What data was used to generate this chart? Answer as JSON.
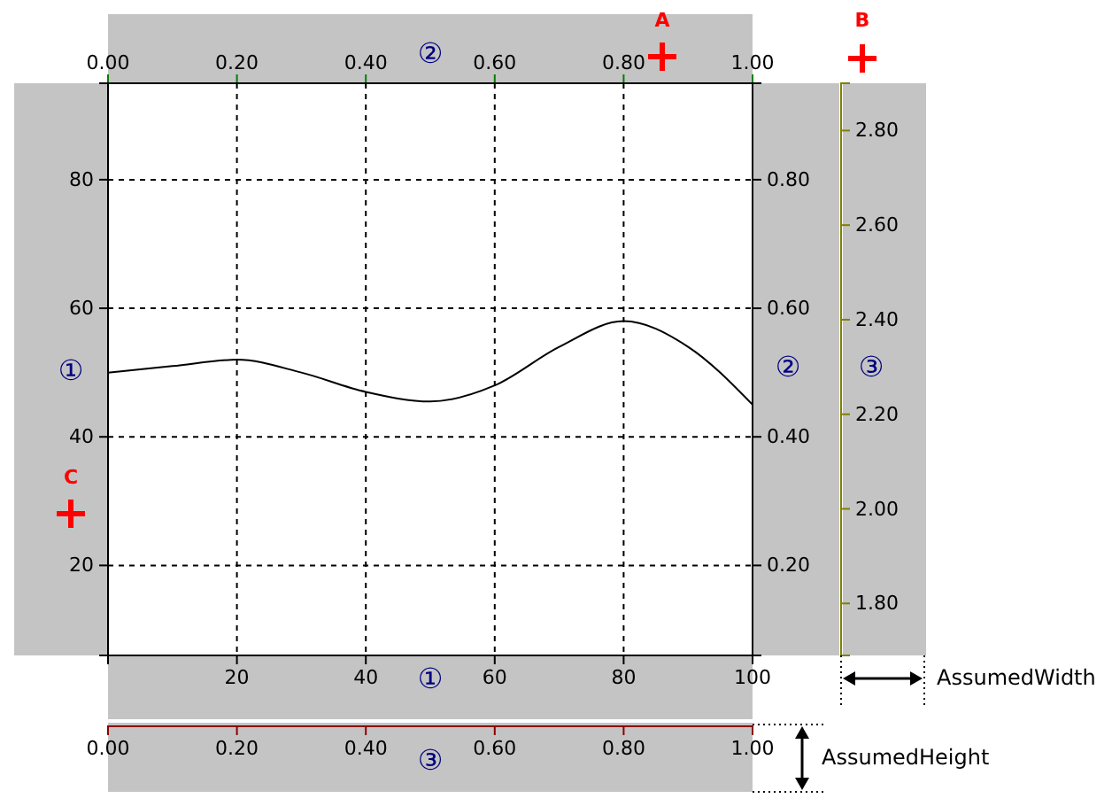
{
  "chart_data": {
    "type": "line",
    "x": [
      0,
      10,
      20,
      30,
      40,
      50,
      60,
      70,
      80,
      90,
      100
    ],
    "series": [
      {
        "color": "#000000",
        "values": [
          50,
          51,
          52,
          50,
          47,
          45.5,
          48,
          54,
          58,
          54,
          45
        ]
      }
    ],
    "xlim": [
      0,
      100
    ],
    "xticks": [
      20,
      40,
      60,
      80,
      100
    ],
    "xlabel": "①",
    "x2lim": [
      0,
      1
    ],
    "x2ticks": [
      {
        "value": 0,
        "label": "0.00"
      },
      {
        "value": 0.2,
        "label": "0.20"
      },
      {
        "value": 0.4,
        "label": "0.40"
      },
      {
        "value": 0.6,
        "label": "0.60"
      },
      {
        "value": 0.8,
        "label": "0.80"
      },
      {
        "value": 1,
        "label": "1.00"
      }
    ],
    "x2label": "②",
    "ylim": [
      6,
      95
    ],
    "yticks": [
      20,
      40,
      60,
      80
    ],
    "ylabel": "①",
    "y2lim": [
      0.06,
      0.95
    ],
    "y2ticks": [
      {
        "value": 0.2,
        "label": "0.20"
      },
      {
        "value": 0.4,
        "label": "0.40"
      },
      {
        "value": 0.6,
        "label": "0.60"
      },
      {
        "value": 0.8,
        "label": "0.80"
      }
    ],
    "y2label": "②",
    "y3lim": [
      1.69,
      2.9
    ],
    "y3ticks": [
      {
        "value": 1.8,
        "label": "1.80"
      },
      {
        "value": 2,
        "label": "2.00"
      },
      {
        "value": 2.2,
        "label": "2.20"
      },
      {
        "value": 2.4,
        "label": "2.40"
      },
      {
        "value": 2.6,
        "label": "2.60"
      },
      {
        "value": 2.8,
        "label": "2.80"
      }
    ],
    "y3label": "③",
    "grid": true,
    "marker": "none",
    "line_style": "solid",
    "annotations": [
      "A",
      "B",
      "C",
      "AssumedWidth",
      "AssumedHeight",
      "③"
    ]
  }
}
